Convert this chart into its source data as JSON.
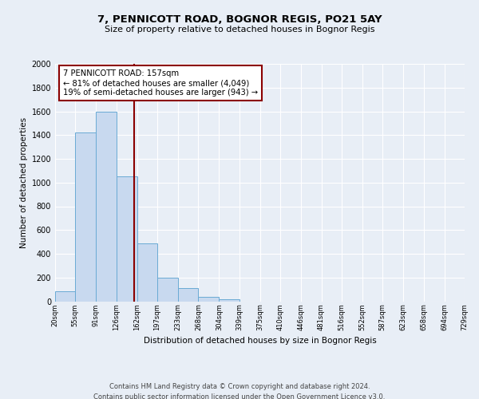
{
  "title": "7, PENNICOTT ROAD, BOGNOR REGIS, PO21 5AY",
  "subtitle": "Size of property relative to detached houses in Bognor Regis",
  "xlabel": "Distribution of detached houses by size in Bognor Regis",
  "ylabel": "Number of detached properties",
  "bin_edges": [
    20,
    55,
    91,
    126,
    162,
    197,
    233,
    268,
    304,
    339,
    375,
    410,
    446,
    481,
    516,
    552,
    587,
    623,
    658,
    694,
    729
  ],
  "bar_heights": [
    85,
    1420,
    1600,
    1050,
    490,
    200,
    110,
    35,
    15,
    0,
    0,
    0,
    0,
    0,
    0,
    0,
    0,
    0,
    0,
    0
  ],
  "bar_color": "#c8d9ef",
  "bar_edge_color": "#6aaad4",
  "property_size": 157,
  "property_line_color": "#8b0000",
  "annotation_title": "7 PENNICOTT ROAD: 157sqm",
  "annotation_line1": "← 81% of detached houses are smaller (4,049)",
  "annotation_line2": "19% of semi-detached houses are larger (943) →",
  "annotation_box_edge_color": "#8b0000",
  "annotation_box_face_color": "#ffffff",
  "ylim": [
    0,
    2000
  ],
  "yticks": [
    0,
    200,
    400,
    600,
    800,
    1000,
    1200,
    1400,
    1600,
    1800,
    2000
  ],
  "background_color": "#e8eef6",
  "plot_background_color": "#e8eef6",
  "grid_color": "#ffffff",
  "footer_line1": "Contains HM Land Registry data © Crown copyright and database right 2024.",
  "footer_line2": "Contains public sector information licensed under the Open Government Licence v3.0.",
  "tick_labels": [
    "20sqm",
    "55sqm",
    "91sqm",
    "126sqm",
    "162sqm",
    "197sqm",
    "233sqm",
    "268sqm",
    "304sqm",
    "339sqm",
    "375sqm",
    "410sqm",
    "446sqm",
    "481sqm",
    "516sqm",
    "552sqm",
    "587sqm",
    "623sqm",
    "658sqm",
    "694sqm",
    "729sqm"
  ]
}
